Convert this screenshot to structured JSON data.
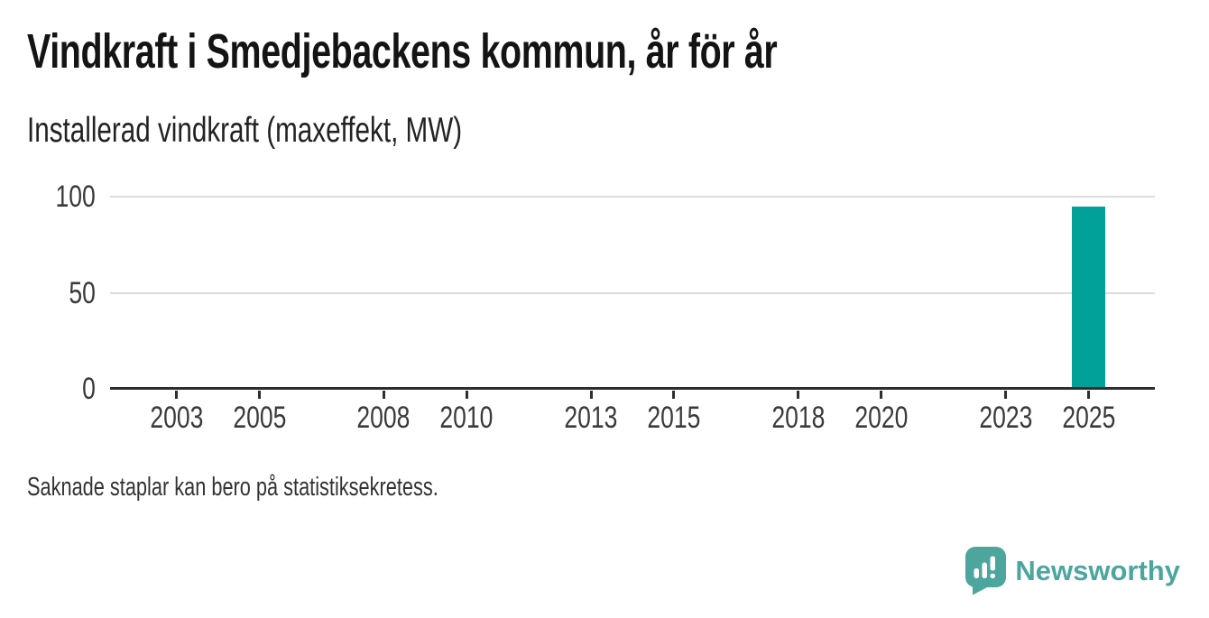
{
  "chart": {
    "title": "Vindkraft i Smedjebackens kommun, år för år",
    "subtitle": "Installerad vindkraft (maxeffekt, MW)",
    "footnote": "Saknade staplar kan bero på statistiksekretess."
  },
  "branding": {
    "name": "Newsworthy",
    "logo_icon": "speech-bubble-bar-chart-icon",
    "color": "#4da69e"
  },
  "colors": {
    "bar": "#01a098",
    "axis": "#2e2e2e",
    "gridline": "#dcdcdc",
    "tick_text": "#3a3a3a",
    "title_text": "#141414"
  },
  "chart_data": {
    "type": "bar",
    "title": "Vindkraft i Smedjebackens kommun, år för år",
    "subtitle": "Installerad vindkraft (maxeffekt, MW)",
    "ylabel": "Installerad vindkraft (maxeffekt, MW)",
    "xlabel": "",
    "unit": "MW",
    "x_domain": [
      2001.4,
      2026.6
    ],
    "x_ticks": [
      2003,
      2005,
      2008,
      2010,
      2013,
      2015,
      2018,
      2020,
      2023,
      2025
    ],
    "y_ticks": [
      0,
      50,
      100
    ],
    "ylim": [
      0,
      100
    ],
    "grid": "horizontal-only",
    "legend": "none",
    "bar_width_years": 0.82,
    "bars": [
      {
        "x": 2025,
        "value": 95
      }
    ],
    "note": "Saknade staplar kan bero på statistiksekretess."
  }
}
